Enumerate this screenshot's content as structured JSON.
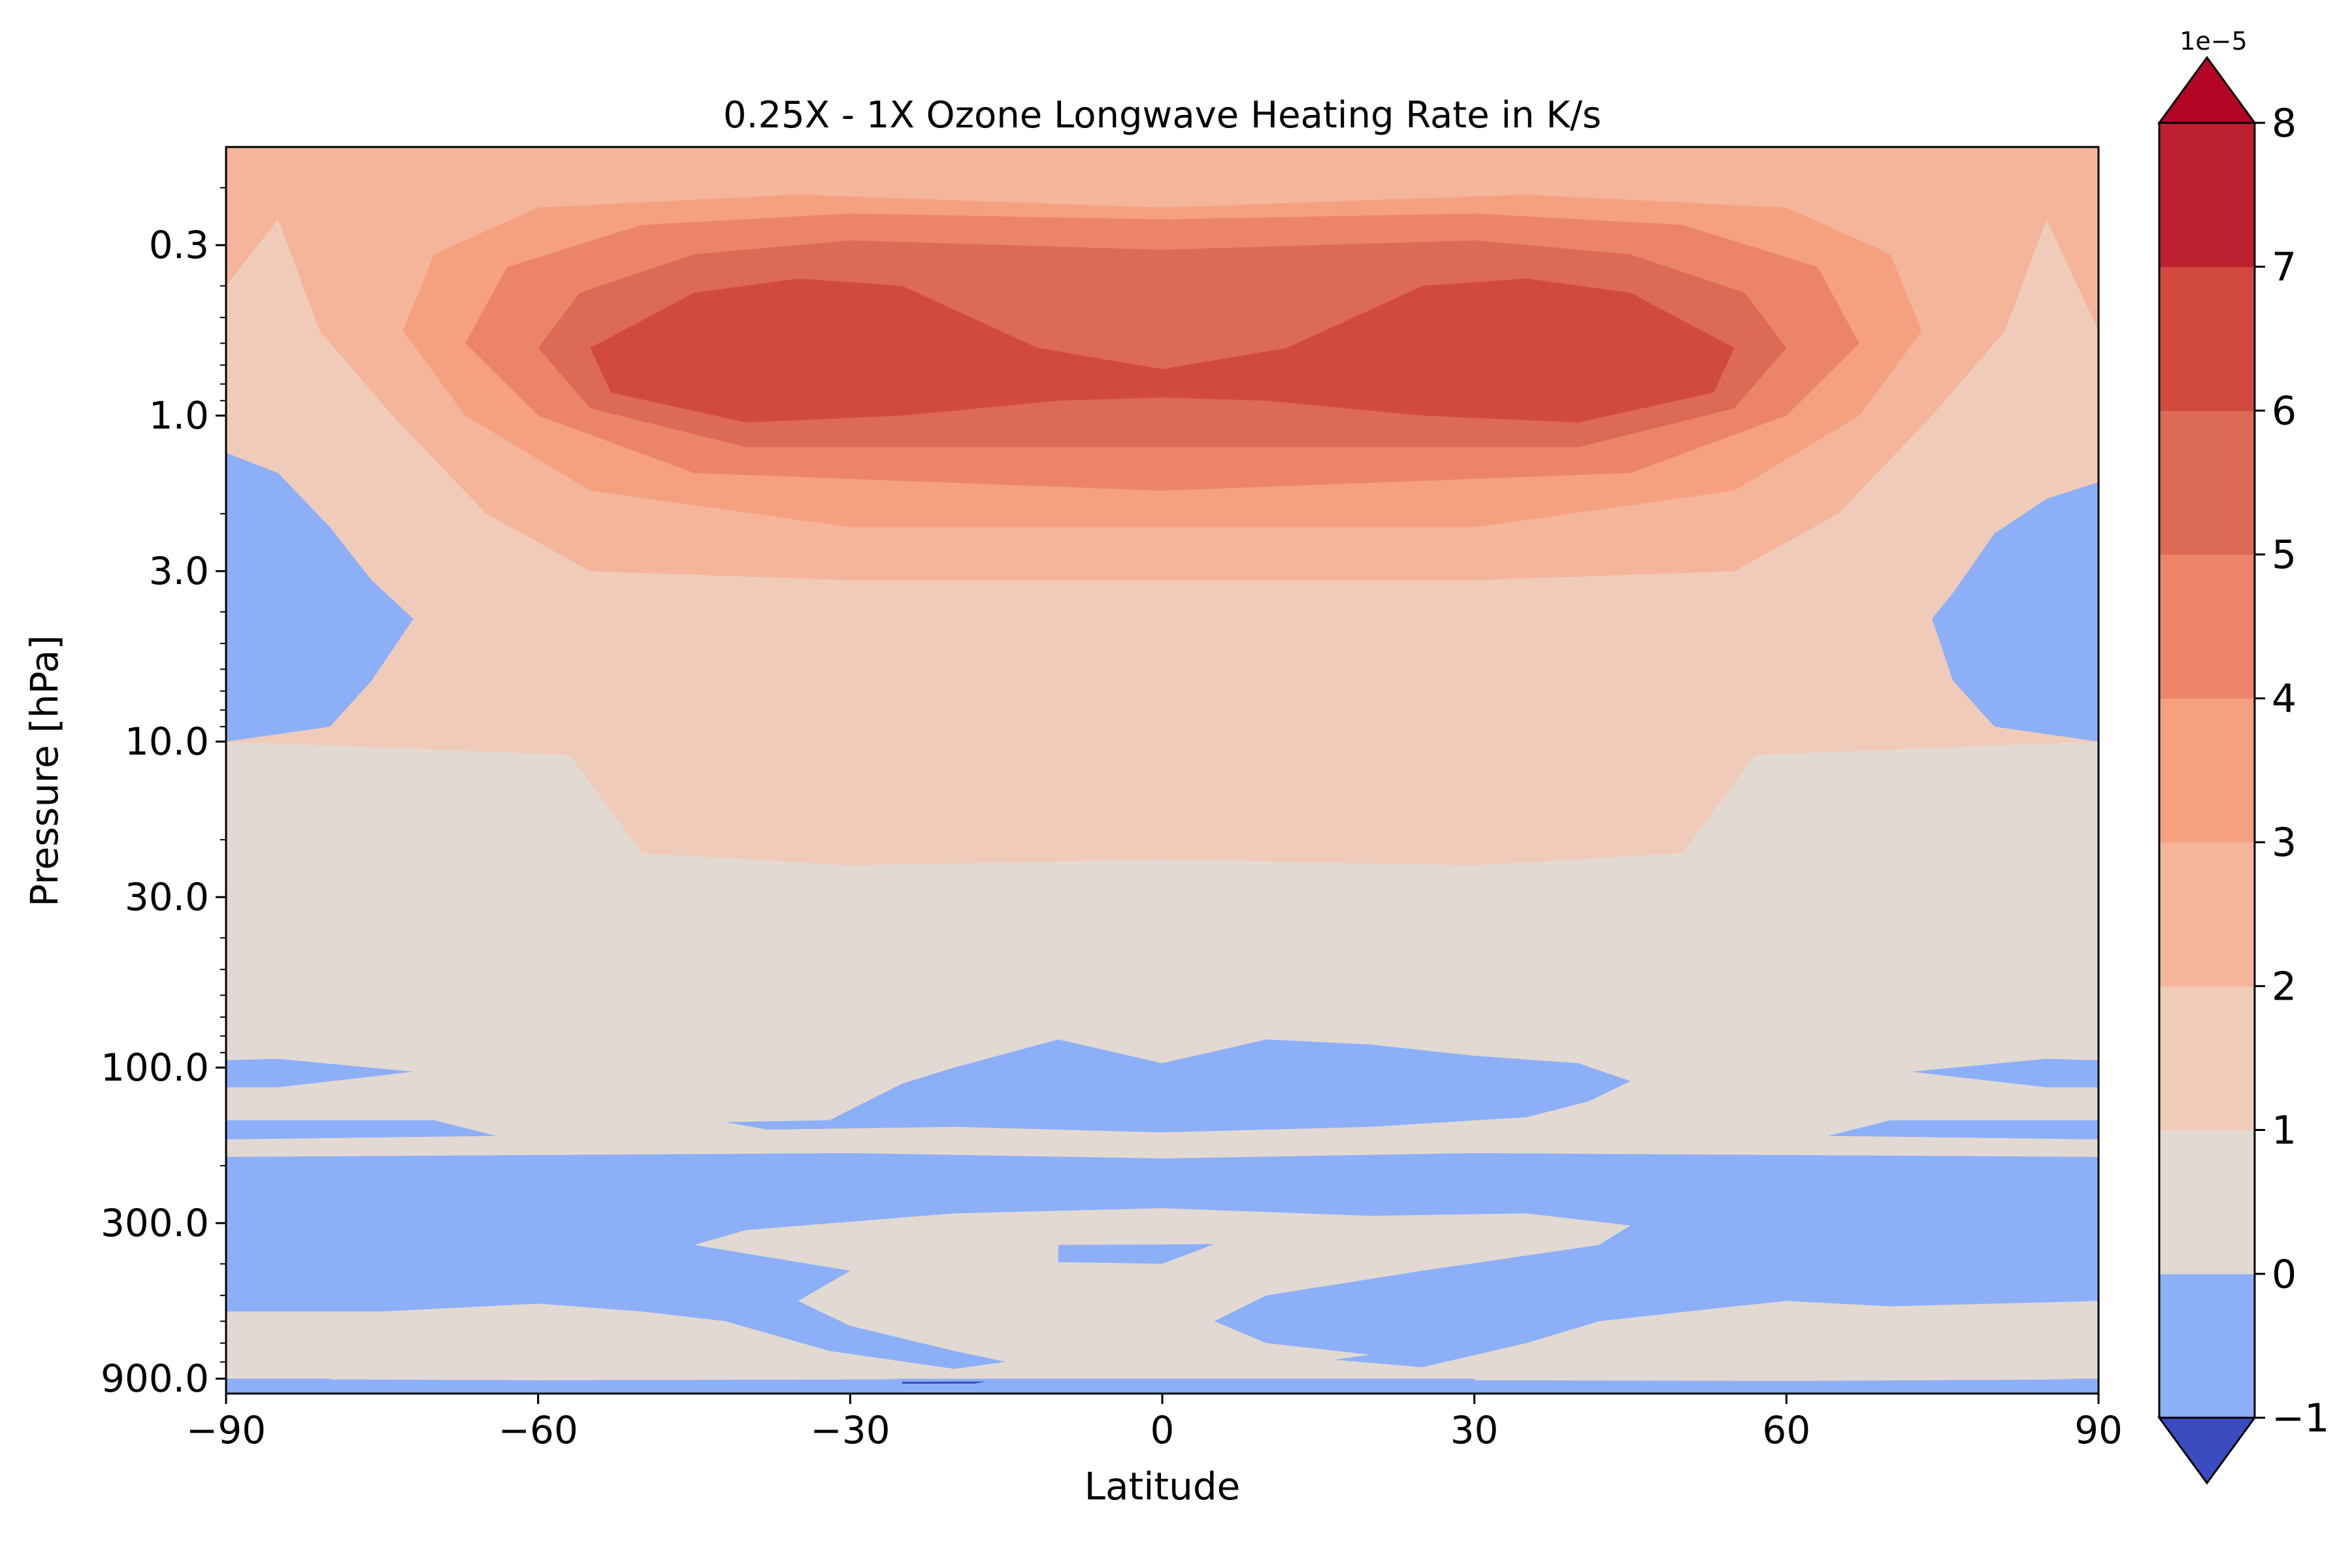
{
  "chart_data": {
    "type": "heatmap",
    "title": "0.25X - 1X Ozone Longwave Heating Rate in K/s",
    "xlabel": "Latitude",
    "ylabel": "Pressure [hPa]",
    "x_ticks": [
      -90,
      -60,
      -30,
      0,
      30,
      60,
      90
    ],
    "x_tick_labels": [
      "−90",
      "−60",
      "−30",
      "0",
      "30",
      "60",
      "90"
    ],
    "xlim": [
      -90,
      90
    ],
    "y_scale": "log",
    "y_inverted": true,
    "y_ticks": [
      0.3,
      1.0,
      3.0,
      10.0,
      30.0,
      100.0,
      300.0,
      900.0
    ],
    "y_tick_labels": [
      "0.3",
      "1.0",
      "3.0",
      "10.0",
      "30.0",
      "100.0",
      "300.0",
      "900.0"
    ],
    "ylim": [
      1000,
      0.15
    ],
    "colorbar": {
      "levels": [
        -1,
        0,
        1,
        2,
        3,
        4,
        5,
        6,
        7,
        8
      ],
      "tick_labels": [
        "−1",
        "0",
        "1",
        "2",
        "3",
        "4",
        "5",
        "6",
        "7",
        "8"
      ],
      "scale_label": "1e−5",
      "extend": "both",
      "colors": [
        "#3b4cc0",
        "#8caff8",
        "#e3d9d3",
        "#f1cbb9",
        "#f5b59b",
        "#f5a17f",
        "#ec8568",
        "#dd6a54",
        "#d24a3f",
        "#bd2130",
        "#b40426"
      ]
    },
    "regions": [
      {
        "level": 3,
        "points": [
          [
            -90,
            0.15
          ],
          [
            90,
            0.15
          ],
          [
            90,
            3.2
          ],
          [
            -90,
            3.2
          ]
        ]
      },
      {
        "level": 2,
        "points": [
          [
            -90,
            3.2
          ],
          [
            90,
            3.2
          ],
          [
            90,
            10
          ],
          [
            57,
            11
          ],
          [
            50,
            22
          ],
          [
            30,
            24
          ],
          [
            0,
            23
          ],
          [
            -30,
            24
          ],
          [
            -50,
            22
          ],
          [
            -57,
            11
          ],
          [
            -90,
            10
          ]
        ]
      },
      {
        "level": 1,
        "points": [
          [
            -90,
            10
          ],
          [
            -57,
            11
          ],
          [
            -50,
            22
          ],
          [
            -30,
            24
          ],
          [
            0,
            23
          ],
          [
            30,
            24
          ],
          [
            50,
            22
          ],
          [
            57,
            11
          ],
          [
            90,
            10
          ],
          [
            90,
            1000
          ],
          [
            -90,
            1000
          ]
        ]
      },
      {
        "level": 2,
        "points": [
          [
            -90,
            0.4
          ],
          [
            -85,
            0.25
          ],
          [
            -81,
            0.55
          ],
          [
            -74,
            1.0
          ],
          [
            -65,
            2.0
          ],
          [
            -55,
            3.0
          ],
          [
            -30,
            3.2
          ],
          [
            0,
            3.2
          ],
          [
            30,
            3.2
          ],
          [
            55,
            3.0
          ],
          [
            65,
            2.0
          ],
          [
            74,
            1.0
          ],
          [
            81,
            0.55
          ],
          [
            85,
            0.25
          ],
          [
            90,
            0.55
          ],
          [
            90,
            3.2
          ],
          [
            -90,
            3.2
          ]
        ]
      },
      {
        "level": 3,
        "points": [
          [
            -78,
            0.55
          ],
          [
            -76,
            0.3
          ],
          [
            -72,
            0.2
          ],
          [
            -60,
            0.17
          ],
          [
            -35,
            0.2
          ],
          [
            0,
            0.21
          ],
          [
            35,
            0.2
          ],
          [
            60,
            0.17
          ],
          [
            72,
            0.2
          ],
          [
            76,
            0.3
          ],
          [
            78,
            0.55
          ],
          [
            72,
            1.1
          ],
          [
            60,
            2.2
          ],
          [
            30,
            2.8
          ],
          [
            0,
            2.8
          ],
          [
            -30,
            2.8
          ],
          [
            -60,
            2.2
          ],
          [
            -72,
            1.1
          ]
        ]
      },
      {
        "level": 4,
        "points": [
          [
            -73,
            0.55
          ],
          [
            -70,
            0.32
          ],
          [
            -60,
            0.23
          ],
          [
            -35,
            0.21
          ],
          [
            0,
            0.23
          ],
          [
            35,
            0.21
          ],
          [
            60,
            0.23
          ],
          [
            70,
            0.32
          ],
          [
            73,
            0.55
          ],
          [
            67,
            1.0
          ],
          [
            55,
            1.7
          ],
          [
            30,
            2.2
          ],
          [
            0,
            2.2
          ],
          [
            -30,
            2.2
          ],
          [
            -55,
            1.7
          ],
          [
            -67,
            1.0
          ]
        ]
      },
      {
        "level": 5,
        "points": [
          [
            -67,
            0.6
          ],
          [
            -63,
            0.35
          ],
          [
            -50,
            0.26
          ],
          [
            -30,
            0.24
          ],
          [
            0,
            0.25
          ],
          [
            30,
            0.24
          ],
          [
            50,
            0.26
          ],
          [
            63,
            0.35
          ],
          [
            67,
            0.6
          ],
          [
            60,
            1.0
          ],
          [
            45,
            1.5
          ],
          [
            0,
            1.7
          ],
          [
            -45,
            1.5
          ],
          [
            -60,
            1.0
          ]
        ]
      },
      {
        "level": 6,
        "points": [
          [
            -60,
            0.62
          ],
          [
            -56,
            0.42
          ],
          [
            -45,
            0.32
          ],
          [
            -30,
            0.29
          ],
          [
            0,
            0.31
          ],
          [
            30,
            0.29
          ],
          [
            45,
            0.32
          ],
          [
            56,
            0.42
          ],
          [
            60,
            0.62
          ],
          [
            55,
            0.95
          ],
          [
            40,
            1.25
          ],
          [
            0,
            1.25
          ],
          [
            -40,
            1.25
          ],
          [
            -55,
            0.95
          ]
        ]
      },
      {
        "level": 7,
        "points": [
          [
            -55,
            0.62
          ],
          [
            -45,
            0.42
          ],
          [
            -35,
            0.38
          ],
          [
            -25,
            0.4
          ],
          [
            -12,
            0.62
          ],
          [
            0,
            0.72
          ],
          [
            12,
            0.62
          ],
          [
            25,
            0.4
          ],
          [
            35,
            0.38
          ],
          [
            45,
            0.42
          ],
          [
            55,
            0.62
          ],
          [
            53,
            0.85
          ],
          [
            40,
            1.05
          ],
          [
            25,
            1.0
          ],
          [
            10,
            0.9
          ],
          [
            0,
            0.88
          ],
          [
            -10,
            0.9
          ],
          [
            -25,
            1.0
          ],
          [
            -40,
            1.05
          ],
          [
            -53,
            0.85
          ]
        ]
      },
      {
        "level": 0,
        "points": [
          [
            -90,
            1.3
          ],
          [
            -85,
            1.5
          ],
          [
            -80,
            2.2
          ],
          [
            -76,
            3.2
          ],
          [
            -72,
            4.2
          ],
          [
            -76,
            6.5
          ],
          [
            -80,
            9.0
          ],
          [
            -90,
            10
          ]
        ]
      },
      {
        "level": 0,
        "points": [
          [
            90,
            1.6
          ],
          [
            85,
            1.8
          ],
          [
            80,
            2.3
          ],
          [
            76,
            3.5
          ],
          [
            74,
            4.2
          ],
          [
            76,
            6.5
          ],
          [
            80,
            9.0
          ],
          [
            90,
            10
          ]
        ]
      },
      {
        "level": 0,
        "points": [
          [
            -90,
            95
          ],
          [
            -85,
            94
          ],
          [
            -72,
            103
          ],
          [
            -85,
            115
          ],
          [
            -90,
            115
          ]
        ]
      },
      {
        "level": 0,
        "points": [
          [
            90,
            95
          ],
          [
            85,
            94
          ],
          [
            72,
            103
          ],
          [
            85,
            115
          ],
          [
            90,
            115
          ]
        ]
      },
      {
        "level": 0,
        "points": [
          [
            -90,
            145
          ],
          [
            -70,
            145
          ],
          [
            -64,
            162
          ],
          [
            -90,
            166
          ]
        ]
      },
      {
        "level": 0,
        "points": [
          [
            90,
            145
          ],
          [
            70,
            145
          ],
          [
            64,
            162
          ],
          [
            90,
            166
          ]
        ]
      },
      {
        "level": 0,
        "points": [
          [
            -42,
            147
          ],
          [
            -32,
            145
          ],
          [
            -25,
            112
          ],
          [
            -20,
            100
          ],
          [
            -10,
            82
          ],
          [
            0,
            97
          ],
          [
            10,
            82
          ],
          [
            20,
            85
          ],
          [
            30,
            92
          ],
          [
            40,
            97
          ],
          [
            45,
            110
          ],
          [
            41,
            127
          ],
          [
            35,
            142
          ],
          [
            20,
            152
          ],
          [
            0,
            158
          ],
          [
            -20,
            152
          ],
          [
            -38,
            155
          ]
        ]
      },
      {
        "level": 0,
        "points": [
          [
            -90,
            188
          ],
          [
            -30,
            183
          ],
          [
            0,
            190
          ],
          [
            30,
            183
          ],
          [
            90,
            188
          ],
          [
            90,
            520
          ],
          [
            70,
            540
          ],
          [
            60,
            520
          ],
          [
            55,
            540
          ],
          [
            42,
            600
          ],
          [
            35,
            700
          ],
          [
            25,
            830
          ],
          [
            15,
            780
          ],
          [
            0,
            700
          ],
          [
            -10,
            760
          ],
          [
            -20,
            840
          ],
          [
            -32,
            740
          ],
          [
            -42,
            600
          ],
          [
            -50,
            560
          ],
          [
            -60,
            530
          ],
          [
            -75,
            560
          ],
          [
            -90,
            560
          ]
        ]
      },
      {
        "level": 0,
        "points": [
          [
            -90,
            900
          ],
          [
            90,
            900
          ],
          [
            90,
            1000
          ],
          [
            -90,
            1000
          ]
        ]
      },
      {
        "level": 1,
        "points": [
          [
            -45,
            350
          ],
          [
            -40,
            315
          ],
          [
            -20,
            280
          ],
          [
            0,
            270
          ],
          [
            20,
            285
          ],
          [
            35,
            280
          ],
          [
            45,
            305
          ],
          [
            42,
            350
          ],
          [
            25,
            420
          ],
          [
            10,
            500
          ],
          [
            5,
            600
          ],
          [
            10,
            700
          ],
          [
            20,
            760
          ],
          [
            15,
            800
          ],
          [
            0,
            760
          ],
          [
            -15,
            800
          ],
          [
            -20,
            740
          ],
          [
            -30,
            620
          ],
          [
            -35,
            520
          ],
          [
            -30,
            420
          ]
        ]
      },
      {
        "level": 0,
        "points": [
          [
            -10,
            350
          ],
          [
            5,
            348
          ],
          [
            0,
            400
          ],
          [
            -10,
            395
          ]
        ]
      },
      {
        "level": 1,
        "points": [
          [
            -90,
            740
          ],
          [
            -60,
            760
          ],
          [
            -45,
            790
          ],
          [
            -60,
            820
          ],
          [
            -90,
            810
          ]
        ]
      },
      {
        "level": 1,
        "points": [
          [
            90,
            760
          ],
          [
            60,
            780
          ],
          [
            45,
            800
          ],
          [
            60,
            830
          ],
          [
            90,
            820
          ]
        ]
      },
      {
        "level": 1,
        "points": [
          [
            -80,
            880
          ],
          [
            -40,
            870
          ],
          [
            -25,
            905
          ],
          [
            -60,
            910
          ],
          [
            -80,
            905
          ]
        ]
      },
      {
        "level": 1,
        "points": [
          [
            30,
            880
          ],
          [
            70,
            875
          ],
          [
            88,
            905
          ],
          [
            60,
            915
          ],
          [
            30,
            910
          ]
        ]
      },
      {
        "level": -1,
        "points": [
          [
            -25,
            920
          ],
          [
            -17,
            918
          ],
          [
            -18,
            932
          ],
          [
            -25,
            933
          ]
        ]
      }
    ]
  }
}
